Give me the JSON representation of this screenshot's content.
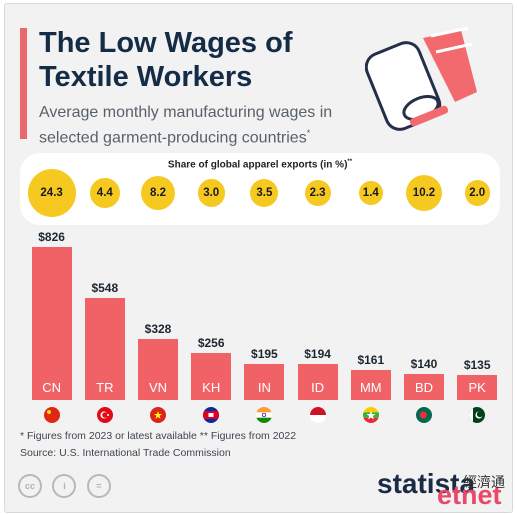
{
  "header": {
    "title": "The Low Wages of Textile Workers",
    "subtitle": "Average monthly manufacturing wages in selected garment-producing countries",
    "subtitle_mark": "*"
  },
  "exports": {
    "title": "Share of global apparel exports (in %)",
    "title_mark": "**"
  },
  "chart_data": {
    "type": "bar",
    "categories": [
      "CN",
      "TR",
      "VN",
      "KH",
      "IN",
      "ID",
      "MM",
      "BD",
      "PK"
    ],
    "values": [
      826,
      548,
      328,
      256,
      195,
      194,
      161,
      140,
      135
    ],
    "value_labels": [
      "$826",
      "$548",
      "$328",
      "$256",
      "$195",
      "$194",
      "$161",
      "$140",
      "$135"
    ],
    "export_share_labels": [
      "24.3",
      "4.4",
      "8.2",
      "3.0",
      "3.5",
      "2.3",
      "1.4",
      "10.2",
      "2.0"
    ],
    "export_share": [
      24.3,
      4.4,
      8.2,
      3.0,
      3.5,
      2.3,
      1.4,
      10.2,
      2.0
    ],
    "ylim": [
      0,
      826
    ],
    "grid": false,
    "bar_color": "#f06266",
    "bubble_color": "#f5c920"
  },
  "flags": [
    "flag-china-icon",
    "flag-turkey-icon",
    "flag-vietnam-icon",
    "flag-cambodia-icon",
    "flag-india-icon",
    "flag-indonesia-icon",
    "flag-myanmar-icon",
    "flag-bangladesh-icon",
    "flag-pakistan-icon"
  ],
  "footer": {
    "note": "* Figures from 2023 or latest available   ** Figures from 2022",
    "source": "Source: U.S. International Trade Commission",
    "cc_labels": [
      "cc",
      "i",
      "="
    ],
    "brand": "statista",
    "watermark": "etnet",
    "watermark_cn": "經濟通"
  }
}
